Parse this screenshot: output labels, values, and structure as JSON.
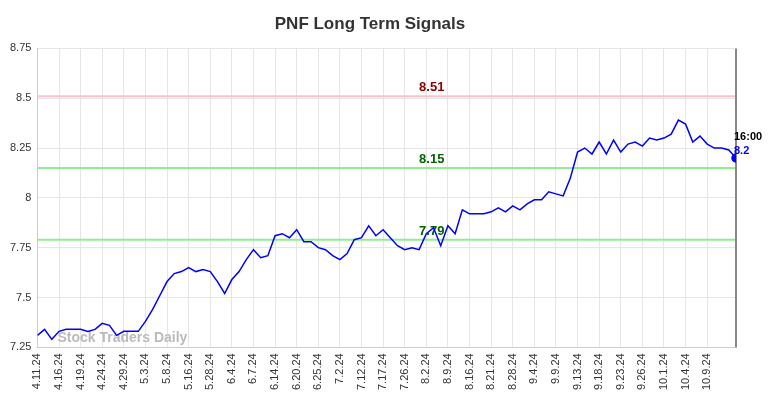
{
  "chart_data": {
    "type": "line",
    "title": "PNF Long Term Signals",
    "categories": [
      "4.11.24",
      null,
      null,
      "4.16.24",
      null,
      null,
      "4.19.24",
      null,
      null,
      "4.24.24",
      null,
      null,
      "4.29.24",
      null,
      null,
      "5.3.24",
      null,
      null,
      "5.8.24",
      null,
      null,
      "5.16.24",
      null,
      null,
      "5.28.24",
      null,
      null,
      "6.4.24",
      null,
      null,
      "6.7.24",
      null,
      null,
      "6.14.24",
      null,
      null,
      "6.20.24",
      null,
      null,
      "6.25.24",
      null,
      null,
      "7.2.24",
      null,
      null,
      "7.12.24",
      null,
      null,
      "7.17.24",
      null,
      null,
      "7.26.24",
      null,
      null,
      "8.2.24",
      null,
      null,
      "8.9.24",
      null,
      null,
      "8.16.24",
      null,
      null,
      "8.21.24",
      null,
      null,
      "8.28.24",
      null,
      null,
      "9.4.24",
      null,
      null,
      "9.9.24",
      null,
      null,
      "9.13.24",
      null,
      null,
      "9.18.24",
      null,
      null,
      "9.23.24",
      null,
      null,
      "9.26.24",
      null,
      null,
      "10.1.24",
      null,
      null,
      "10.4.24",
      null,
      null,
      "10.9.24",
      null,
      null,
      null,
      null
    ],
    "values": [
      7.31,
      7.34,
      7.29,
      7.33,
      7.34,
      7.34,
      7.34,
      7.33,
      7.34,
      7.37,
      7.36,
      7.31,
      7.33,
      7.33,
      7.33,
      7.38,
      7.44,
      7.51,
      7.58,
      7.62,
      7.63,
      7.65,
      7.63,
      7.64,
      7.63,
      7.58,
      7.52,
      7.59,
      7.63,
      7.69,
      7.74,
      7.7,
      7.71,
      7.81,
      7.82,
      7.8,
      7.84,
      7.78,
      7.78,
      7.75,
      7.74,
      7.71,
      7.69,
      7.72,
      7.79,
      7.8,
      7.86,
      7.81,
      7.84,
      7.8,
      7.76,
      7.74,
      7.75,
      7.74,
      7.82,
      7.85,
      7.76,
      7.86,
      7.82,
      7.94,
      7.92,
      7.92,
      7.92,
      7.93,
      7.95,
      7.93,
      7.96,
      7.94,
      7.97,
      7.99,
      7.99,
      8.03,
      8.02,
      8.01,
      8.1,
      8.23,
      8.25,
      8.22,
      8.28,
      8.22,
      8.29,
      8.23,
      8.27,
      8.28,
      8.26,
      8.3,
      8.29,
      8.3,
      8.32,
      8.39,
      8.37,
      8.28,
      8.31,
      8.27,
      8.25,
      8.25,
      8.24,
      8.2
    ],
    "color": "#0000ff",
    "ylim": [
      7.25,
      8.75
    ],
    "yticks": [
      7.25,
      7.5,
      7.75,
      8,
      8.25,
      8.5,
      8.75
    ],
    "grid": true,
    "annotations": [
      {
        "y": 8.51,
        "text": "8.51",
        "color": "#8b0000",
        "line_color": "#ffc0cb"
      },
      {
        "y": 8.15,
        "text": "8.15",
        "color": "#006400",
        "line_color": "#90ee90"
      },
      {
        "y": 7.79,
        "text": "7.79",
        "color": "#006400",
        "line_color": "#90ee90"
      }
    ],
    "watermark": "Stock Traders Daily",
    "end_label": {
      "time": "16:00",
      "value_label": "8.2"
    }
  }
}
